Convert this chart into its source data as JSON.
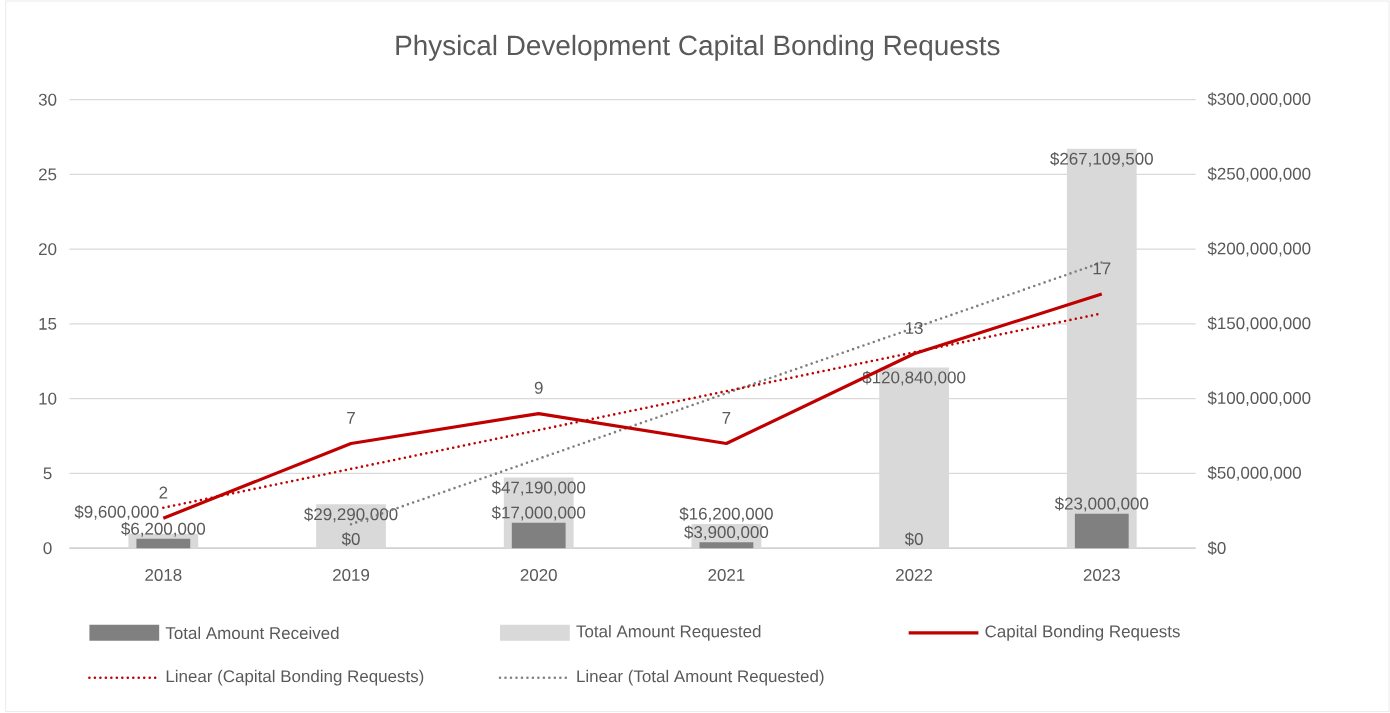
{
  "chart_data": {
    "type": "bar",
    "title": "Physical Development Capital Bonding Requests",
    "categories": [
      "2018",
      "2019",
      "2020",
      "2021",
      "2022",
      "2023"
    ],
    "ylim": [
      0,
      30
    ],
    "yticks": [
      0,
      5,
      10,
      15,
      20,
      25,
      30
    ],
    "y2lim": [
      0,
      300000000
    ],
    "y2ticks": [
      {
        "value": 0,
        "label": "$0"
      },
      {
        "value": 50000000,
        "label": "$50,000,000"
      },
      {
        "value": 100000000,
        "label": "$100,000,000"
      },
      {
        "value": 150000000,
        "label": "$150,000,000"
      },
      {
        "value": 200000000,
        "label": "$200,000,000"
      },
      {
        "value": 250000000,
        "label": "$250,000,000"
      },
      {
        "value": 300000000,
        "label": "$300,000,000"
      }
    ],
    "grid": "y",
    "legend": "bottom",
    "series": [
      {
        "name": "Total Amount Received",
        "axis": "y2",
        "color": "#808080",
        "values": [
          6200000,
          0,
          17000000,
          3900000,
          0,
          23000000
        ],
        "value_labels": [
          "$6,200,000",
          "$0",
          "$17,000,000",
          "$3,900,000",
          "$0",
          "$23,000,000"
        ]
      },
      {
        "name": "Total Amount Requested",
        "axis": "y2",
        "color": "#d9d9d9",
        "values": [
          9600000,
          29290000,
          47190000,
          16200000,
          120840000,
          267109500
        ],
        "value_labels": [
          "$9,600,000",
          "$29,290,000",
          "$47,190,000",
          "$16,200,000",
          "$120,840,000",
          "$267,109,500"
        ]
      },
      {
        "name": "Capital Bonding Requests",
        "type": "line",
        "color": "#c00000",
        "values": [
          2,
          7,
          9,
          7,
          13,
          17
        ],
        "value_labels": [
          "2",
          "7",
          "9",
          "7",
          "13",
          "17"
        ]
      },
      {
        "name": "Linear (Capital Bonding Requests)",
        "type": "line",
        "color": "#c00000",
        "line_style": "dotted",
        "values": [
          2.7,
          5.3,
          7.9,
          10.5,
          13.1,
          15.7
        ]
      },
      {
        "name": "Linear (Total Amount Requested)",
        "type": "line",
        "axis": "y2",
        "color": "#7f7f7f",
        "line_style": "dotted",
        "values": [
          null,
          16000000,
          59800000,
          103600000,
          147300000,
          191100000
        ]
      }
    ]
  }
}
